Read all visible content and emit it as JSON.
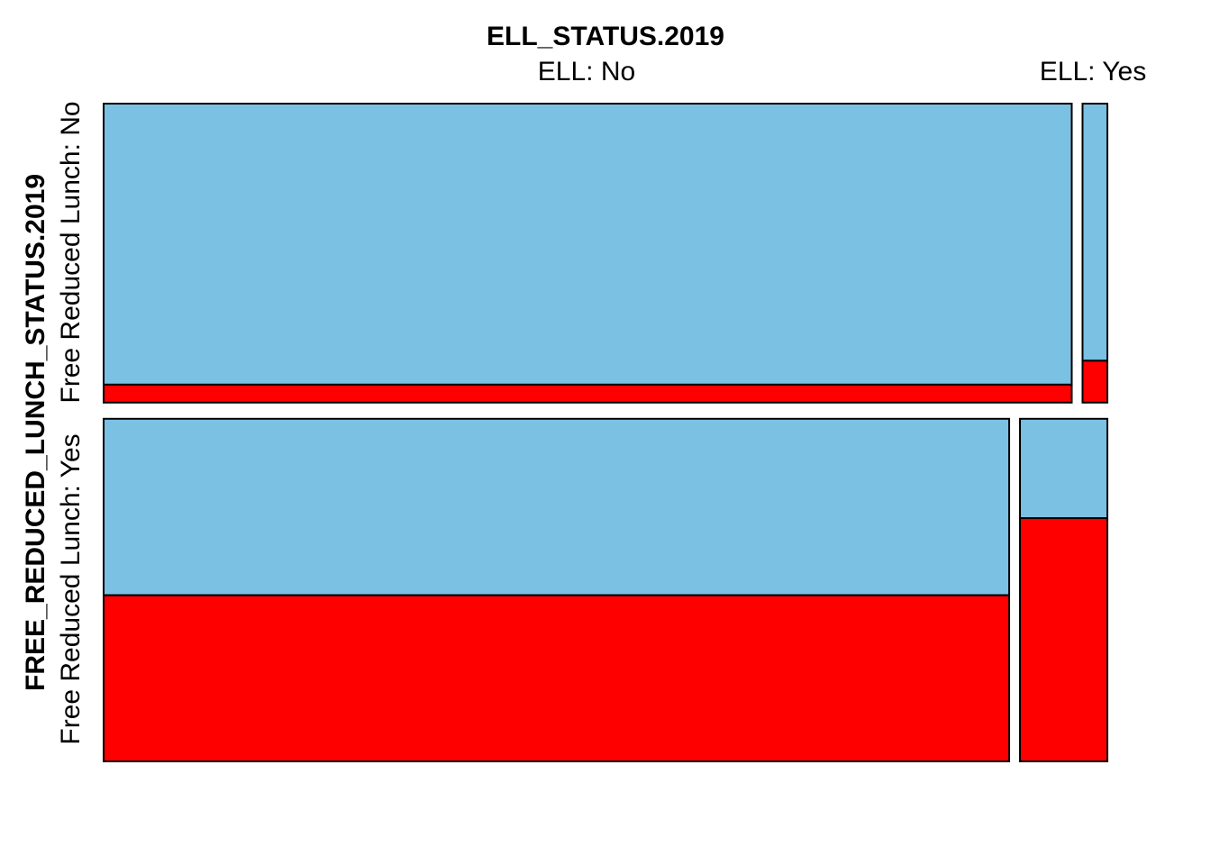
{
  "chart_data": {
    "type": "mosaic",
    "title": "ELL_STATUS.2019",
    "ylabel": "FREE_REDUCED_LUNCH_STATUS.2019",
    "column_categories": [
      "ELL: No",
      "ELL: Yes"
    ],
    "row_categories": [
      "Free Reduced Lunch: No",
      "Free Reduced Lunch: Yes"
    ],
    "column_proportions": {
      "Free Reduced Lunch: No": [
        0.975,
        0.025
      ],
      "Free Reduced Lunch: Yes": [
        0.912,
        0.088
      ]
    },
    "row_proportions": [
      0.466,
      0.534
    ],
    "fill_colors": {
      "upper": "#7AC1E4",
      "lower": "#FF0000"
    },
    "cells": [
      {
        "row": "Free Reduced Lunch: No",
        "column": "ELL: No",
        "upper_fraction": 0.94,
        "lower_fraction": 0.06
      },
      {
        "row": "Free Reduced Lunch: No",
        "column": "ELL: Yes",
        "upper_fraction": 0.86,
        "lower_fraction": 0.14
      },
      {
        "row": "Free Reduced Lunch: Yes",
        "column": "ELL: No",
        "upper_fraction": 0.515,
        "lower_fraction": 0.485
      },
      {
        "row": "Free Reduced Lunch: Yes",
        "column": "ELL: Yes",
        "upper_fraction": 0.29,
        "lower_fraction": 0.71
      }
    ]
  }
}
